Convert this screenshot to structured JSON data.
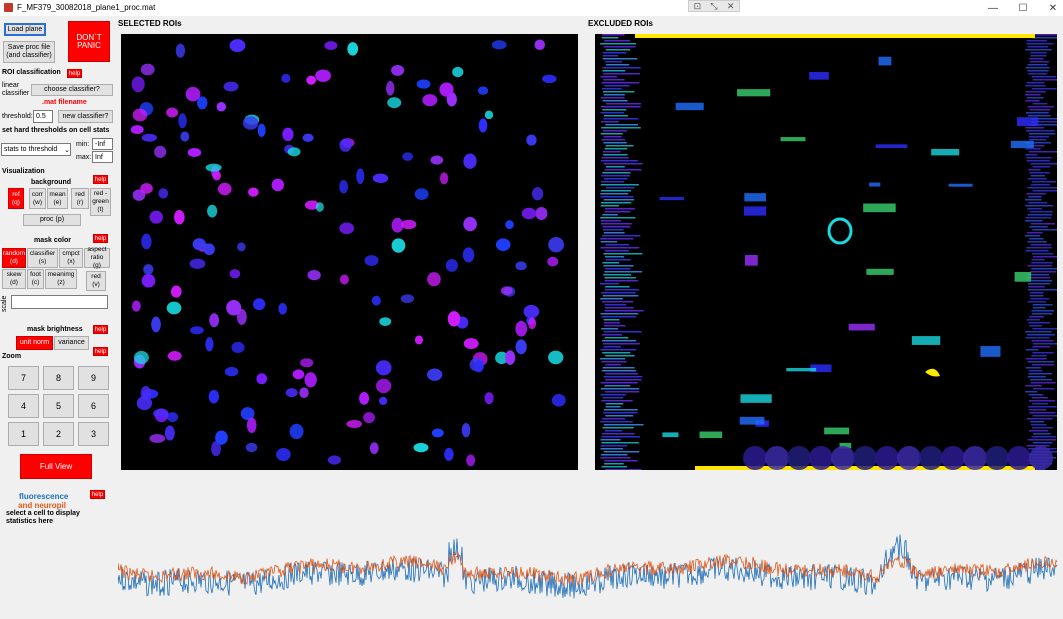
{
  "window": {
    "title": "F_MF379_30082018_plane1_proc.mat",
    "minimize_icon": "minimize-icon",
    "maximize_icon": "maximize-icon",
    "close_icon": "close-icon"
  },
  "left": {
    "load_plane": "Load plane",
    "save_proc": "Save proc file (and classifier)",
    "dont_panic": "DON`T PANIC",
    "roi_classification": "ROI classification",
    "help": "help",
    "linear_classifier": "linear classifier",
    "choose_classifier": "choose classifier?",
    "mat_filename": ".mat filename",
    "threshold_label": "threshold:",
    "threshold_value": "0.5",
    "new_classifier": "new classifier?",
    "hard_thresholds": "set hard thresholds on cell stats",
    "stats_select": "stats to threshold",
    "min_label": "min:",
    "min_value": "-Inf",
    "max_label": "max:",
    "max_value": "Inf",
    "visualization": "Visualization",
    "background": "background",
    "bg_buttons": [
      "ref (q)",
      "corr (w)",
      "mean (e)",
      "red (r)",
      "red - green (t)"
    ],
    "proc": "proc (p)",
    "mask_color": "mask color",
    "mask_buttons_row1": [
      "random (d)",
      "classifier (s)",
      "cmpct (x)",
      "aspect ratio (g)"
    ],
    "mask_buttons_row2": [
      "skew (d)",
      "foot (c)",
      "meanimg (z)",
      "red (v)"
    ],
    "scale": "scale",
    "mask_brightness": "mask brightness",
    "unit_norm": "unit norm",
    "variance": "variance",
    "zoom": "Zoom",
    "zoom_keys": [
      "7",
      "8",
      "9",
      "4",
      "5",
      "6",
      "1",
      "2",
      "3"
    ],
    "full_view": "Full View",
    "fluorescence": "fluorescence",
    "and_neuropil": "and neuropil",
    "select_cell": "select a cell to display statistics here"
  },
  "selected_title": "SELECTED ROIs",
  "excluded_title": "EXCLUDED ROIs",
  "colors": {
    "fluorescence": "#1f6fb8",
    "neuropil": "#e0581c",
    "accent_red": "#ff0000"
  }
}
